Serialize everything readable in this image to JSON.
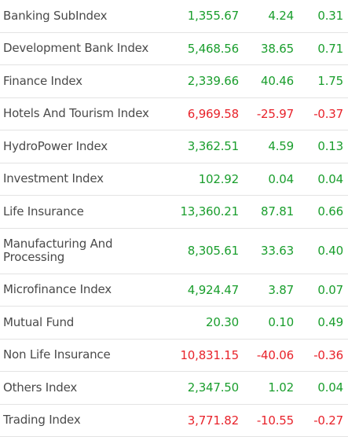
{
  "colors": {
    "positive": "#1a9e2d",
    "negative": "#e8232b",
    "label": "#4a4a4a",
    "divider": "#e3e3e3"
  },
  "indices": [
    {
      "name": "Banking SubIndex",
      "value": "1,355.67",
      "change": "4.24",
      "percent": "0.31",
      "direction": "positive"
    },
    {
      "name": "Development Bank Index",
      "value": "5,468.56",
      "change": "38.65",
      "percent": "0.71",
      "direction": "positive"
    },
    {
      "name": "Finance Index",
      "value": "2,339.66",
      "change": "40.46",
      "percent": "1.75",
      "direction": "positive"
    },
    {
      "name": "Hotels And Tourism Index",
      "value": "6,969.58",
      "change": "-25.97",
      "percent": "-0.37",
      "direction": "negative"
    },
    {
      "name": "HydroPower Index",
      "value": "3,362.51",
      "change": "4.59",
      "percent": "0.13",
      "direction": "positive"
    },
    {
      "name": "Investment Index",
      "value": "102.92",
      "change": "0.04",
      "percent": "0.04",
      "direction": "positive"
    },
    {
      "name": "Life Insurance",
      "value": "13,360.21",
      "change": "87.81",
      "percent": "0.66",
      "direction": "positive"
    },
    {
      "name": "Manufacturing And Processing",
      "value": "8,305.61",
      "change": "33.63",
      "percent": "0.40",
      "direction": "positive"
    },
    {
      "name": "Microfinance Index",
      "value": "4,924.47",
      "change": "3.87",
      "percent": "0.07",
      "direction": "positive"
    },
    {
      "name": "Mutual Fund",
      "value": "20.30",
      "change": "0.10",
      "percent": "0.49",
      "direction": "positive"
    },
    {
      "name": "Non Life Insurance",
      "value": "10,831.15",
      "change": "-40.06",
      "percent": "-0.36",
      "direction": "negative"
    },
    {
      "name": "Others Index",
      "value": "2,347.50",
      "change": "1.02",
      "percent": "0.04",
      "direction": "positive"
    },
    {
      "name": "Trading Index",
      "value": "3,771.82",
      "change": "-10.55",
      "percent": "-0.27",
      "direction": "negative"
    }
  ]
}
